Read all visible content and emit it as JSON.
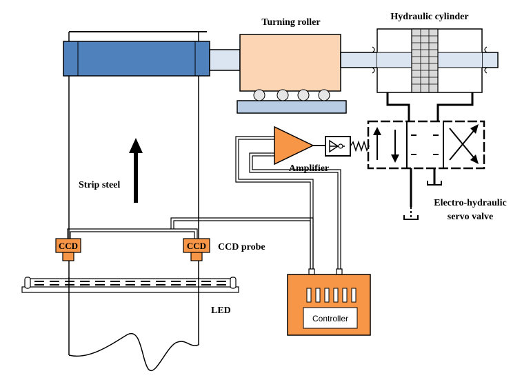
{
  "labels": {
    "turning_roller": "Turning roller",
    "hydraulic_cylinder": "Hydraulic cylinder",
    "amplifier": "Amplifier",
    "strip_steel": "Strip steel",
    "ccd_left": "CCD",
    "ccd_right": "CCD",
    "ccd_probe": "CCD probe",
    "servo_valve_line1": "Electro-hydraulic",
    "servo_valve_line2": "servo valve",
    "led": "LED",
    "controller": "Controller"
  },
  "colors": {
    "steel_roll": "#4f81bd",
    "turning_roller": "#fcd5b4",
    "roller_base": "#b8cce4",
    "shaft": "#dbe5f1",
    "ccd": "#f79646",
    "controller": "#f79646",
    "outline": "#000000"
  }
}
